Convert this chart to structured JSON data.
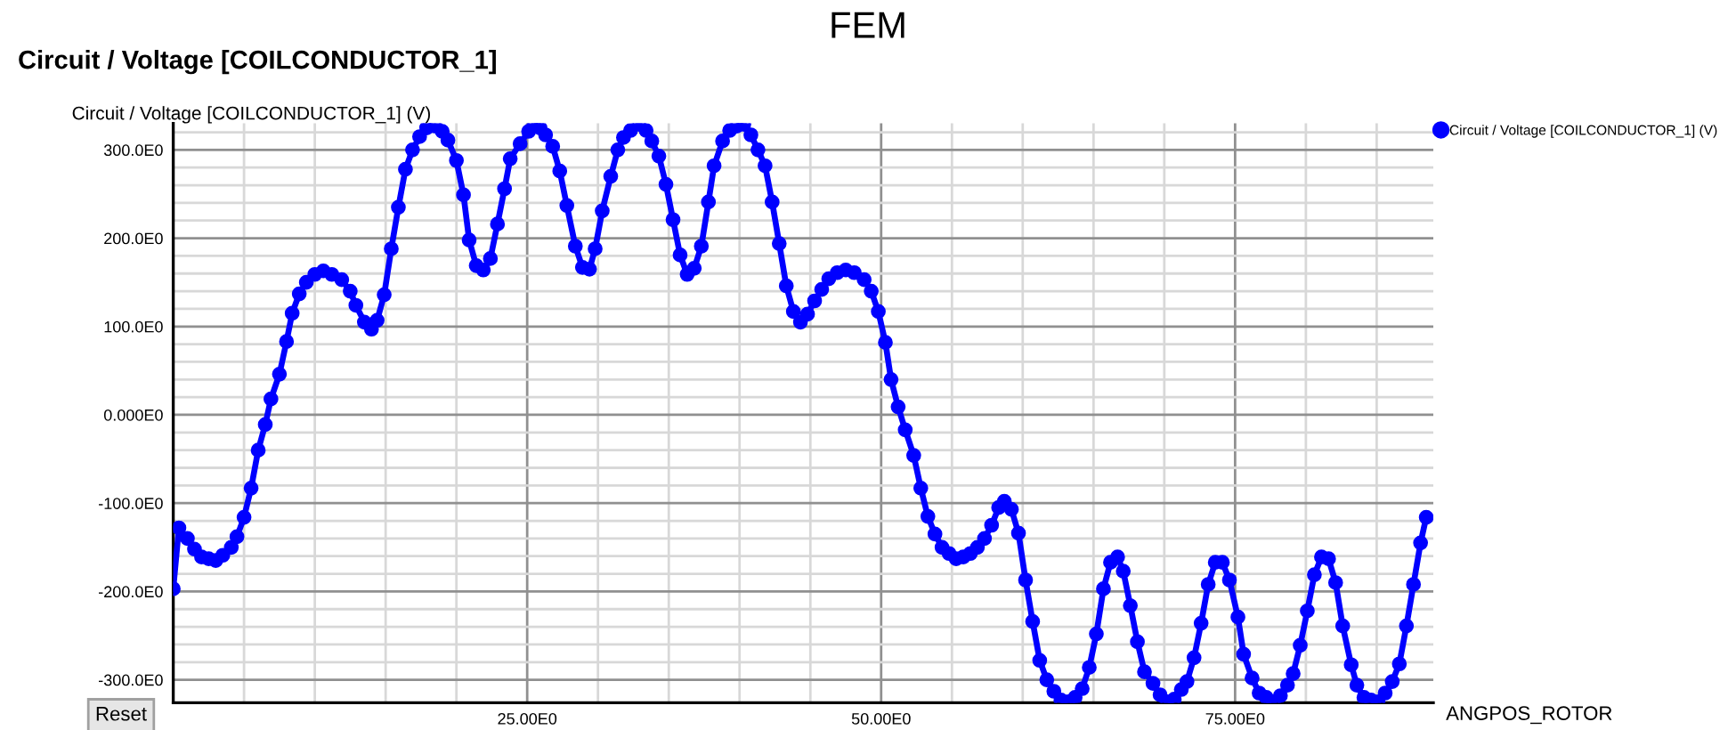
{
  "chart_data": {
    "type": "line",
    "title": "FEM",
    "subtitle": "Circuit / Voltage [COILCONDUCTOR_1]",
    "ylabel": "Circuit / Voltage [COILCONDUCTOR_1] (V)",
    "xlabel": "ANGPOS_ROTOR",
    "annotations": [
      "Reset"
    ],
    "xlim": [
      0,
      89
    ],
    "ylim": [
      -326,
      330
    ],
    "xticks": [
      {
        "value": 5,
        "label": null
      },
      {
        "value": 10,
        "label": null
      },
      {
        "value": 15,
        "label": null
      },
      {
        "value": 20,
        "label": null
      },
      {
        "value": 25,
        "label": "25.00E0"
      },
      {
        "value": 30,
        "label": null
      },
      {
        "value": 35,
        "label": null
      },
      {
        "value": 40,
        "label": null
      },
      {
        "value": 45,
        "label": null
      },
      {
        "value": 50,
        "label": "50.00E0"
      },
      {
        "value": 55,
        "label": null
      },
      {
        "value": 60,
        "label": null
      },
      {
        "value": 65,
        "label": null
      },
      {
        "value": 70,
        "label": null
      },
      {
        "value": 75,
        "label": "75.00E0"
      },
      {
        "value": 80,
        "label": null
      },
      {
        "value": 85,
        "label": null
      }
    ],
    "yticks": [
      {
        "value": -300,
        "label": "-300.0E0"
      },
      {
        "value": -280,
        "label": null
      },
      {
        "value": -260,
        "label": null
      },
      {
        "value": -240,
        "label": null
      },
      {
        "value": -220,
        "label": null
      },
      {
        "value": -200,
        "label": "-200.0E0"
      },
      {
        "value": -180,
        "label": null
      },
      {
        "value": -160,
        "label": null
      },
      {
        "value": -140,
        "label": null
      },
      {
        "value": -120,
        "label": null
      },
      {
        "value": -100,
        "label": "-100.0E0"
      },
      {
        "value": -80,
        "label": null
      },
      {
        "value": -60,
        "label": null
      },
      {
        "value": -40,
        "label": null
      },
      {
        "value": -20,
        "label": null
      },
      {
        "value": 0,
        "label": "0.000E0"
      },
      {
        "value": 20,
        "label": null
      },
      {
        "value": 40,
        "label": null
      },
      {
        "value": 60,
        "label": null
      },
      {
        "value": 80,
        "label": null
      },
      {
        "value": 100,
        "label": "100.0E0"
      },
      {
        "value": 120,
        "label": null
      },
      {
        "value": 140,
        "label": null
      },
      {
        "value": 160,
        "label": null
      },
      {
        "value": 180,
        "label": null
      },
      {
        "value": 200,
        "label": "200.0E0"
      },
      {
        "value": 220,
        "label": null
      },
      {
        "value": 240,
        "label": null
      },
      {
        "value": 260,
        "label": null
      },
      {
        "value": 280,
        "label": null
      },
      {
        "value": 300,
        "label": "300.0E0"
      },
      {
        "value": 320,
        "label": null
      }
    ],
    "grid": true,
    "legend": "top right",
    "marker": "circle",
    "line_style": "solid",
    "series": [
      {
        "name": "Circuit / Voltage [COILCONDUCTOR_1] (V)",
        "color": "#0000ff",
        "x": [
          0,
          0.4,
          1.0,
          1.5,
          2.0,
          2.5,
          3.0,
          3.5,
          4.1,
          4.5,
          5.0,
          5.5,
          6.0,
          6.5,
          6.9,
          7.5,
          8.0,
          8.4,
          8.9,
          9.4,
          10.0,
          10.6,
          11.2,
          11.9,
          12.5,
          12.9,
          13.5,
          14.0,
          14.4,
          14.9,
          15.4,
          15.9,
          16.4,
          16.9,
          17.4,
          17.9,
          18.5,
          19.0,
          19.4,
          20.0,
          20.5,
          20.9,
          21.4,
          21.9,
          22.4,
          22.9,
          23.4,
          23.8,
          24.5,
          25.1,
          25.5,
          25.9,
          26.3,
          26.8,
          27.3,
          27.8,
          28.4,
          28.9,
          29.4,
          29.8,
          30.3,
          30.9,
          31.4,
          31.8,
          32.3,
          32.9,
          33.4,
          33.8,
          34.3,
          34.8,
          35.3,
          35.8,
          36.3,
          36.8,
          37.3,
          37.8,
          38.2,
          38.8,
          39.3,
          39.8,
          40.3,
          40.8,
          41.3,
          41.8,
          42.3,
          42.8,
          43.3,
          43.8,
          44.3,
          44.8,
          45.3,
          45.8,
          46.3,
          46.9,
          47.5,
          48.1,
          48.8,
          49.3,
          49.8,
          50.3,
          50.7,
          51.2,
          51.7,
          52.3,
          52.8,
          53.3,
          53.8,
          54.3,
          54.8,
          55.3,
          55.8,
          56.3,
          56.8,
          57.3,
          57.8,
          58.3,
          58.7,
          59.2,
          59.7,
          60.2,
          60.7,
          61.2,
          61.7,
          62.2,
          62.7,
          63.2,
          63.7,
          64.2,
          64.7,
          65.2,
          65.7,
          66.2,
          66.7,
          67.1,
          67.6,
          68.1,
          68.6,
          69.2,
          69.7,
          70.2,
          70.7,
          71.2,
          71.6,
          72.1,
          72.6,
          73.1,
          73.6,
          74.1,
          74.6,
          75.2,
          75.6,
          76.2,
          76.7,
          77.2,
          77.7,
          78.2,
          78.7,
          79.1,
          79.6,
          80.1,
          80.6,
          81.1,
          81.6,
          82.1,
          82.6,
          83.2,
          83.6,
          84.1,
          84.6,
          85.1,
          85.6,
          86.1,
          86.6,
          87.1,
          87.6,
          88.1,
          88.5
        ],
        "values": [
          -197,
          -128,
          -140,
          -152,
          -161,
          -163,
          -165,
          -159,
          -150,
          -138,
          -116,
          -83,
          -40,
          -11,
          18,
          46,
          83,
          115,
          137,
          150,
          159,
          163,
          159,
          153,
          140,
          124,
          105,
          97,
          107,
          136,
          188,
          235,
          278,
          300,
          315,
          325,
          327,
          321,
          311,
          288,
          249,
          198,
          169,
          164,
          177,
          216,
          256,
          290,
          307,
          321,
          329,
          325,
          317,
          304,
          276,
          237,
          191,
          167,
          165,
          188,
          231,
          270,
          300,
          314,
          322,
          329,
          322,
          310,
          293,
          261,
          221,
          181,
          159,
          166,
          191,
          241,
          282,
          310,
          322,
          327,
          329,
          317,
          300,
          282,
          241,
          194,
          146,
          117,
          105,
          114,
          129,
          142,
          154,
          161,
          164,
          161,
          153,
          140,
          117,
          82,
          40,
          9,
          -17,
          -46,
          -83,
          -115,
          -135,
          -150,
          -157,
          -163,
          -161,
          -157,
          -150,
          -140,
          -125,
          -105,
          -98,
          -107,
          -134,
          -187,
          -234,
          -278,
          -300,
          -313,
          -323,
          -325,
          -320,
          -310,
          -286,
          -248,
          -197,
          -167,
          -161,
          -177,
          -216,
          -257,
          -291,
          -304,
          -317,
          -325,
          -322,
          -311,
          -302,
          -275,
          -236,
          -192,
          -167,
          -167,
          -187,
          -229,
          -271,
          -298,
          -315,
          -320,
          -325,
          -318,
          -306,
          -293,
          -261,
          -222,
          -181,
          -161,
          -163,
          -190,
          -239,
          -283,
          -306,
          -320,
          -323,
          -325,
          -315,
          -302,
          -282,
          -239,
          -192,
          -145,
          -116
        ]
      }
    ]
  }
}
